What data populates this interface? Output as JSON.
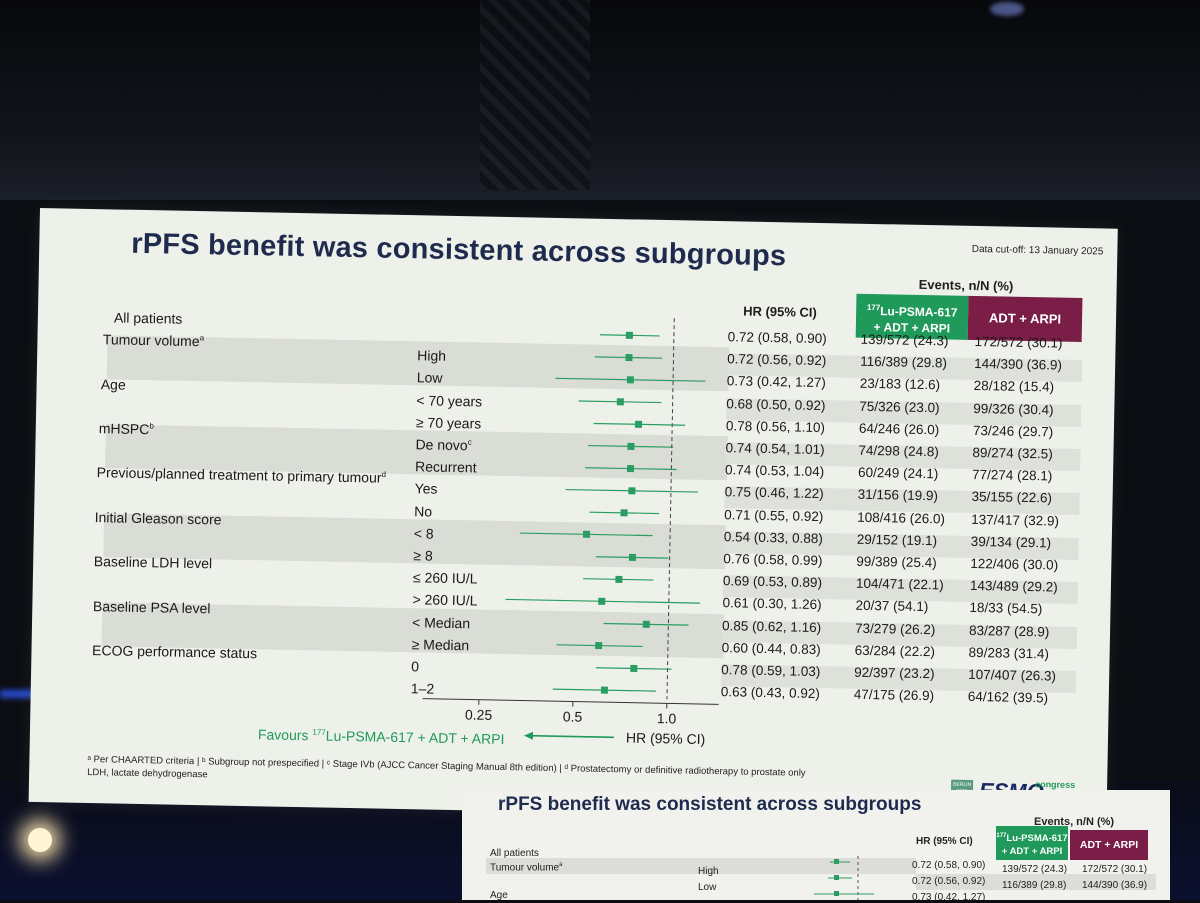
{
  "slide": {
    "title": "rPFS benefit was consistent across subgroups",
    "data_cutoff": "Data cut-off: 13 January 2025",
    "events_header": "Events, n/N (%)",
    "hr_header": "HR (95% CI)",
    "arm1": {
      "sup": "177",
      "line1": "Lu-PSMA-617",
      "line2": "+ ADT + ARPI",
      "color": "#1f9a5a"
    },
    "arm2": {
      "label": "ADT + ARPI",
      "color": "#7a1d47"
    },
    "favours_prefix": "Favours ",
    "favours_sup": "177",
    "favours_suffix": "Lu-PSMA-617 + ADT + ARPI",
    "axis_title": "HR (95% CI)",
    "footnote_line1": "ᵃ Per CHAARTED criteria | ᵇ Subgroup not prespecified | ᶜ Stage IVb (AJCC Cancer Staging Manual 8th edition) | ᵈ Prostatectomy or definitive radiotherapy to prostate only",
    "footnote_line2": "LDH, lactate dehydrogenase",
    "logo": {
      "box_text": "BERLIN 2025",
      "word": "ESMO",
      "sub": "congress"
    }
  },
  "chart_data": {
    "type": "forest",
    "x_scale": "log",
    "xlim": [
      0.2,
      1.6
    ],
    "x_ticks": [
      "0.25",
      "0.5",
      "1.0"
    ],
    "x_tick_values": [
      0.25,
      0.5,
      1.0
    ],
    "reference_line": 1.0,
    "rows": [
      {
        "group": "All patients",
        "group_sup": "",
        "sub": "",
        "hr": 0.72,
        "lo": 0.58,
        "hi": 0.9,
        "hr_text": "0.72 (0.58, 0.90)",
        "arm1": "139/572 (24.3)",
        "arm2": "172/572 (30.1)"
      },
      {
        "group": "Tumour volume",
        "group_sup": "a",
        "sub": "High",
        "hr": 0.72,
        "lo": 0.56,
        "hi": 0.92,
        "hr_text": "0.72 (0.56, 0.92)",
        "arm1": "116/389 (29.8)",
        "arm2": "144/390 (36.9)"
      },
      {
        "group": "",
        "group_sup": "",
        "sub": "Low",
        "hr": 0.73,
        "lo": 0.42,
        "hi": 1.27,
        "hr_text": "0.73 (0.42, 1.27)",
        "arm1": "23/183 (12.6)",
        "arm2": "28/182 (15.4)"
      },
      {
        "group": "Age",
        "group_sup": "",
        "sub": "< 70 years",
        "hr": 0.68,
        "lo": 0.5,
        "hi": 0.92,
        "hr_text": "0.68 (0.50, 0.92)",
        "arm1": "75/326 (23.0)",
        "arm2": "99/326 (30.4)"
      },
      {
        "group": "",
        "group_sup": "",
        "sub": "≥ 70 years",
        "hr": 0.78,
        "lo": 0.56,
        "hi": 1.1,
        "hr_text": "0.78 (0.56, 1.10)",
        "arm1": "64/246 (26.0)",
        "arm2": "73/246 (29.7)"
      },
      {
        "group": "mHSPC",
        "group_sup": "b",
        "sub": "De novo",
        "sub_sup": "c",
        "hr": 0.74,
        "lo": 0.54,
        "hi": 1.01,
        "hr_text": "0.74 (0.54, 1.01)",
        "arm1": "74/298 (24.8)",
        "arm2": "89/274 (32.5)"
      },
      {
        "group": "",
        "group_sup": "",
        "sub": "Recurrent",
        "hr": 0.74,
        "lo": 0.53,
        "hi": 1.04,
        "hr_text": "0.74 (0.53, 1.04)",
        "arm1": "60/249 (24.1)",
        "arm2": "77/274 (28.1)"
      },
      {
        "group": "Previous/planned treatment to primary tumour",
        "group_sup": "d",
        "sub": "Yes",
        "hr": 0.75,
        "lo": 0.46,
        "hi": 1.22,
        "hr_text": "0.75 (0.46, 1.22)",
        "arm1": "31/156 (19.9)",
        "arm2": "35/155 (22.6)"
      },
      {
        "group": "",
        "group_sup": "",
        "sub": "No",
        "hr": 0.71,
        "lo": 0.55,
        "hi": 0.92,
        "hr_text": "0.71 (0.55, 0.92)",
        "arm1": "108/416 (26.0)",
        "arm2": "137/417 (32.9)"
      },
      {
        "group": "Initial Gleason score",
        "group_sup": "",
        "sub": "< 8",
        "hr": 0.54,
        "lo": 0.33,
        "hi": 0.88,
        "hr_text": "0.54 (0.33, 0.88)",
        "arm1": "29/152 (19.1)",
        "arm2": "39/134 (29.1)"
      },
      {
        "group": "",
        "group_sup": "",
        "sub": "≥ 8",
        "hr": 0.76,
        "lo": 0.58,
        "hi": 0.99,
        "hr_text": "0.76 (0.58, 0.99)",
        "arm1": "99/389 (25.4)",
        "arm2": "122/406 (30.0)"
      },
      {
        "group": "Baseline LDH level",
        "group_sup": "",
        "sub": "≤ 260 IU/L",
        "hr": 0.69,
        "lo": 0.53,
        "hi": 0.89,
        "hr_text": "0.69 (0.53, 0.89)",
        "arm1": "104/471 (22.1)",
        "arm2": "143/489 (29.2)"
      },
      {
        "group": "",
        "group_sup": "",
        "sub": "> 260 IU/L",
        "hr": 0.61,
        "lo": 0.3,
        "hi": 1.26,
        "hr_text": "0.61 (0.30, 1.26)",
        "arm1": "20/37 (54.1)",
        "arm2": "18/33 (54.5)"
      },
      {
        "group": "Baseline PSA level",
        "group_sup": "",
        "sub": "< Median",
        "hr": 0.85,
        "lo": 0.62,
        "hi": 1.16,
        "hr_text": "0.85 (0.62, 1.16)",
        "arm1": "73/279 (26.2)",
        "arm2": "83/287 (28.9)"
      },
      {
        "group": "",
        "group_sup": "",
        "sub": "≥ Median",
        "hr": 0.6,
        "lo": 0.44,
        "hi": 0.83,
        "hr_text": "0.60 (0.44, 0.83)",
        "arm1": "63/284 (22.2)",
        "arm2": "89/283 (31.4)"
      },
      {
        "group": "ECOG performance status",
        "group_sup": "",
        "sub": "0",
        "hr": 0.78,
        "lo": 0.59,
        "hi": 1.03,
        "hr_text": "0.78 (0.59, 1.03)",
        "arm1": "92/397 (23.2)",
        "arm2": "107/407 (26.3)"
      },
      {
        "group": "",
        "group_sup": "",
        "sub": "1–2",
        "hr": 0.63,
        "lo": 0.43,
        "hi": 0.92,
        "hr_text": "0.63 (0.43, 0.92)",
        "arm1": "47/175 (26.9)",
        "arm2": "64/162 (39.5)"
      }
    ]
  },
  "monitor": {
    "title": "rPFS benefit was consistent across subgroups",
    "events_header": "Events, n/N (%)",
    "hr_header": "HR (95% CI)",
    "arm1_sup": "177",
    "arm1_line1": "Lu-PSMA-617",
    "arm1_line2": "+ ADT + ARPI",
    "arm2": "ADT + ARPI",
    "row1_label": "All patients",
    "row2_label": "Tumour volume",
    "row2_sup": "a",
    "row2_sub": "High",
    "row3_sub": "Low",
    "row4_label": "Age",
    "row1_hr": "0.72 (0.58, 0.90)",
    "row1_a1": "139/572 (24.3)",
    "row1_a2": "172/572 (30.1)",
    "row2_hr": "0.72 (0.56, 0.92)",
    "row2_a1": "116/389 (29.8)",
    "row2_a2": "144/390 (36.9)",
    "row3_hr": "0.73 (0.42, 1.27)"
  }
}
